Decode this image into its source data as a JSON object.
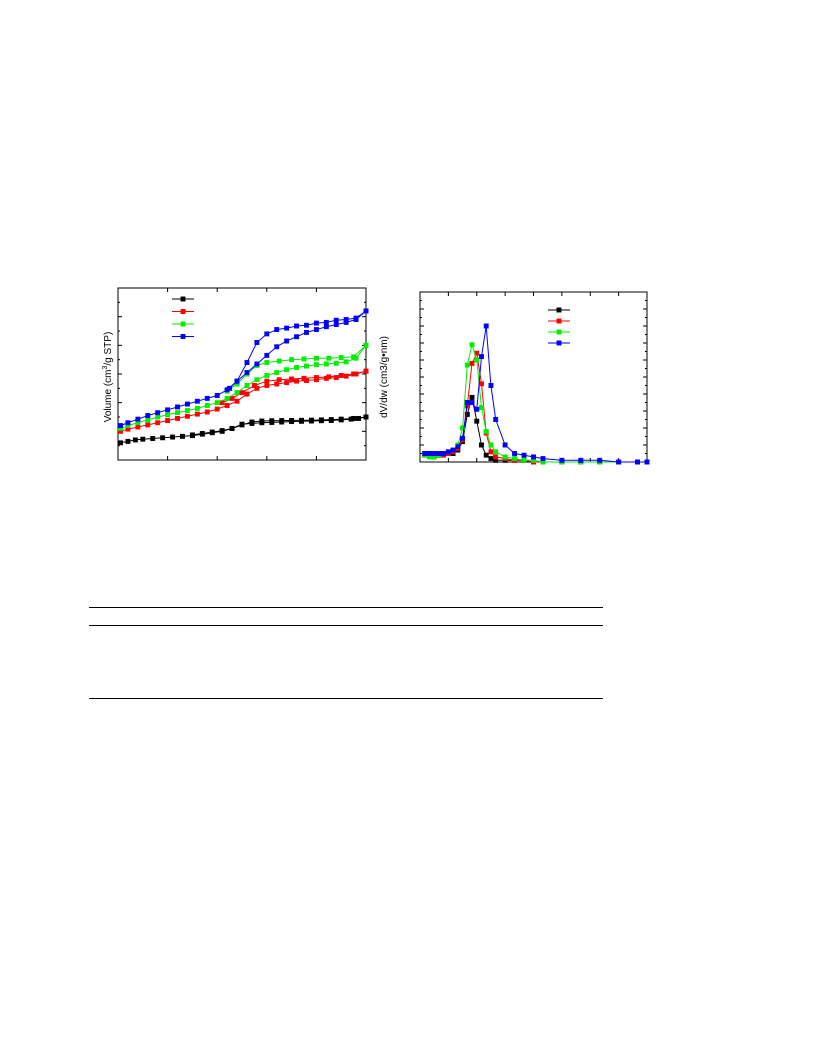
{
  "chart_data": [
    {
      "type": "line",
      "xlabel": "",
      "ylabel_prefix": "Volume (cm",
      "ylabel_sup": "3",
      "ylabel_suffix": "/g STP)",
      "xlim": [
        0,
        1
      ],
      "ylim": [
        0,
        12
      ],
      "legend_position": "top-left",
      "series": [
        {
          "color": "#000000",
          "adsorption": {
            "x": [
              0.01,
              0.04,
              0.07,
              0.1,
              0.14,
              0.18,
              0.22,
              0.26,
              0.3,
              0.34,
              0.38,
              0.42,
              0.46,
              0.5,
              0.54,
              0.58,
              0.62,
              0.66,
              0.7,
              0.74,
              0.78,
              0.82,
              0.86,
              0.9,
              0.94,
              0.97,
              1.0
            ],
            "y": [
              1.2,
              1.3,
              1.4,
              1.45,
              1.5,
              1.55,
              1.6,
              1.65,
              1.7,
              1.8,
              1.9,
              2.0,
              2.2,
              2.5,
              2.55,
              2.6,
              2.62,
              2.65,
              2.68,
              2.7,
              2.72,
              2.74,
              2.76,
              2.8,
              2.85,
              2.9,
              3.0
            ]
          },
          "desorption": {
            "x": [
              1.0,
              0.95,
              0.9,
              0.86,
              0.82,
              0.78,
              0.74,
              0.7,
              0.66,
              0.62,
              0.58,
              0.54,
              0.5,
              0.46,
              0.42,
              0.38,
              0.34,
              0.3
            ],
            "y": [
              3.0,
              2.9,
              2.85,
              2.82,
              2.8,
              2.78,
              2.77,
              2.76,
              2.75,
              2.74,
              2.72,
              2.65,
              2.45,
              2.2,
              2.05,
              1.95,
              1.85,
              1.75
            ]
          }
        },
        {
          "color": "#ff0000",
          "adsorption": {
            "x": [
              0.01,
              0.04,
              0.08,
              0.12,
              0.16,
              0.2,
              0.24,
              0.28,
              0.32,
              0.36,
              0.4,
              0.44,
              0.48,
              0.52,
              0.56,
              0.6,
              0.64,
              0.68,
              0.72,
              0.76,
              0.8,
              0.84,
              0.88,
              0.92,
              0.96,
              1.0
            ],
            "y": [
              2.0,
              2.15,
              2.3,
              2.45,
              2.6,
              2.75,
              2.9,
              3.05,
              3.2,
              3.35,
              3.55,
              3.8,
              4.1,
              4.6,
              5.0,
              5.2,
              5.3,
              5.4,
              5.5,
              5.55,
              5.6,
              5.7,
              5.75,
              5.85,
              6.0,
              6.2
            ]
          },
          "desorption": {
            "x": [
              1.0,
              0.95,
              0.9,
              0.85,
              0.8,
              0.75,
              0.7,
              0.65,
              0.6,
              0.55,
              0.5,
              0.46,
              0.42
            ],
            "y": [
              6.2,
              6.0,
              5.9,
              5.8,
              5.75,
              5.7,
              5.65,
              5.6,
              5.5,
              5.2,
              4.7,
              4.3,
              4.0
            ]
          }
        },
        {
          "color": "#00ee00",
          "adsorption": {
            "x": [
              0.01,
              0.04,
              0.08,
              0.12,
              0.16,
              0.2,
              0.24,
              0.28,
              0.32,
              0.36,
              0.4,
              0.44,
              0.48,
              0.52,
              0.56,
              0.6,
              0.64,
              0.68,
              0.72,
              0.76,
              0.8,
              0.84,
              0.88,
              0.92,
              0.96,
              1.0
            ],
            "y": [
              2.2,
              2.4,
              2.6,
              2.8,
              3.0,
              3.15,
              3.3,
              3.45,
              3.6,
              3.8,
              4.0,
              4.3,
              4.7,
              5.2,
              5.6,
              5.9,
              6.1,
              6.3,
              6.45,
              6.55,
              6.65,
              6.7,
              6.75,
              6.85,
              7.1,
              8.0
            ]
          },
          "desorption": {
            "x": [
              1.0,
              0.95,
              0.9,
              0.85,
              0.8,
              0.75,
              0.7,
              0.65,
              0.6,
              0.56,
              0.52,
              0.48,
              0.44
            ],
            "y": [
              8.0,
              7.2,
              7.15,
              7.1,
              7.1,
              7.05,
              7.0,
              6.9,
              6.8,
              6.6,
              6.0,
              5.3,
              4.8
            ]
          }
        },
        {
          "color": "#0000ff",
          "adsorption": {
            "x": [
              0.01,
              0.04,
              0.08,
              0.12,
              0.16,
              0.2,
              0.24,
              0.28,
              0.32,
              0.36,
              0.4,
              0.44,
              0.48,
              0.52,
              0.56,
              0.6,
              0.64,
              0.68,
              0.72,
              0.76,
              0.8,
              0.84,
              0.88,
              0.92,
              0.96,
              1.0
            ],
            "y": [
              2.4,
              2.6,
              2.85,
              3.1,
              3.3,
              3.5,
              3.7,
              3.9,
              4.1,
              4.3,
              4.5,
              4.9,
              5.5,
              6.1,
              6.7,
              7.3,
              7.9,
              8.3,
              8.6,
              8.9,
              9.1,
              9.3,
              9.45,
              9.6,
              9.8,
              10.4
            ]
          },
          "desorption": {
            "x": [
              1.0,
              0.96,
              0.92,
              0.88,
              0.84,
              0.8,
              0.76,
              0.72,
              0.68,
              0.64,
              0.6,
              0.56,
              0.52,
              0.48,
              0.45
            ],
            "y": [
              10.4,
              9.9,
              9.8,
              9.75,
              9.6,
              9.55,
              9.4,
              9.35,
              9.2,
              9.1,
              8.8,
              8.2,
              6.8,
              5.5,
              5.0
            ]
          }
        }
      ]
    },
    {
      "type": "line",
      "xlabel": "",
      "ylabel": "dV/dw (cm3/g•nm)",
      "xlim": [
        0,
        24
      ],
      "ylim": [
        0,
        1.0
      ],
      "legend_position": "top-right",
      "series": [
        {
          "color": "#000000",
          "x": [
            0.5,
            1.0,
            1.5,
            2.0,
            2.5,
            3.0,
            3.5,
            4.0,
            4.5,
            5.0,
            5.5,
            6.0,
            6.5,
            7.0,
            7.5,
            8.0,
            9.0,
            10.0,
            11.0,
            12.0,
            13.0,
            15.0,
            17.0,
            19.0,
            21.0,
            23.0,
            24.0
          ],
          "y": [
            0.05,
            0.05,
            0.04,
            0.04,
            0.05,
            0.05,
            0.05,
            0.07,
            0.12,
            0.28,
            0.38,
            0.24,
            0.1,
            0.04,
            0.02,
            0.01,
            0.01,
            0.01,
            0.01,
            0.0,
            0.0,
            0.0,
            0.0,
            0.0,
            0.0,
            0.0,
            0.0
          ]
        },
        {
          "color": "#ff0000",
          "x": [
            0.5,
            1.0,
            1.5,
            2.0,
            2.5,
            3.0,
            3.5,
            4.0,
            4.5,
            5.0,
            5.5,
            6.0,
            6.5,
            7.0,
            7.5,
            8.0,
            9.0,
            10.0,
            11.0,
            12.0,
            13.0,
            15.0,
            17.0,
            19.0,
            21.0,
            23.0,
            24.0
          ],
          "y": [
            0.04,
            0.04,
            0.03,
            0.04,
            0.04,
            0.05,
            0.06,
            0.08,
            0.13,
            0.33,
            0.58,
            0.64,
            0.46,
            0.17,
            0.06,
            0.03,
            0.02,
            0.01,
            0.01,
            0.0,
            0.0,
            0.0,
            0.0,
            0.0,
            0.0,
            0.0,
            0.0
          ]
        },
        {
          "color": "#00ee00",
          "x": [
            0.5,
            1.0,
            1.5,
            2.0,
            2.5,
            3.0,
            3.5,
            4.0,
            4.5,
            5.0,
            5.5,
            6.0,
            6.5,
            7.0,
            7.5,
            8.0,
            9.0,
            10.0,
            11.0,
            12.0,
            13.0,
            15.0,
            17.0,
            19.0,
            21.0,
            23.0,
            24.0
          ],
          "y": [
            0.04,
            0.03,
            0.03,
            0.04,
            0.05,
            0.06,
            0.07,
            0.1,
            0.2,
            0.57,
            0.69,
            0.6,
            0.32,
            0.18,
            0.1,
            0.06,
            0.03,
            0.02,
            0.01,
            0.01,
            0.0,
            0.0,
            0.0,
            0.0,
            0.0,
            0.0,
            0.0
          ]
        },
        {
          "color": "#0000ff",
          "x": [
            0.5,
            1.0,
            1.5,
            2.0,
            2.5,
            3.0,
            3.5,
            4.0,
            4.5,
            5.0,
            5.5,
            6.0,
            6.5,
            7.0,
            7.5,
            8.0,
            9.0,
            10.0,
            11.0,
            12.0,
            13.0,
            15.0,
            17.0,
            19.0,
            21.0,
            23.0,
            24.0
          ],
          "y": [
            0.05,
            0.05,
            0.05,
            0.05,
            0.05,
            0.06,
            0.07,
            0.09,
            0.14,
            0.35,
            0.35,
            0.31,
            0.62,
            0.8,
            0.45,
            0.25,
            0.1,
            0.05,
            0.04,
            0.03,
            0.02,
            0.01,
            0.01,
            0.01,
            0.0,
            0.0,
            0.0
          ]
        }
      ]
    }
  ],
  "table": {
    "rules": 3
  }
}
